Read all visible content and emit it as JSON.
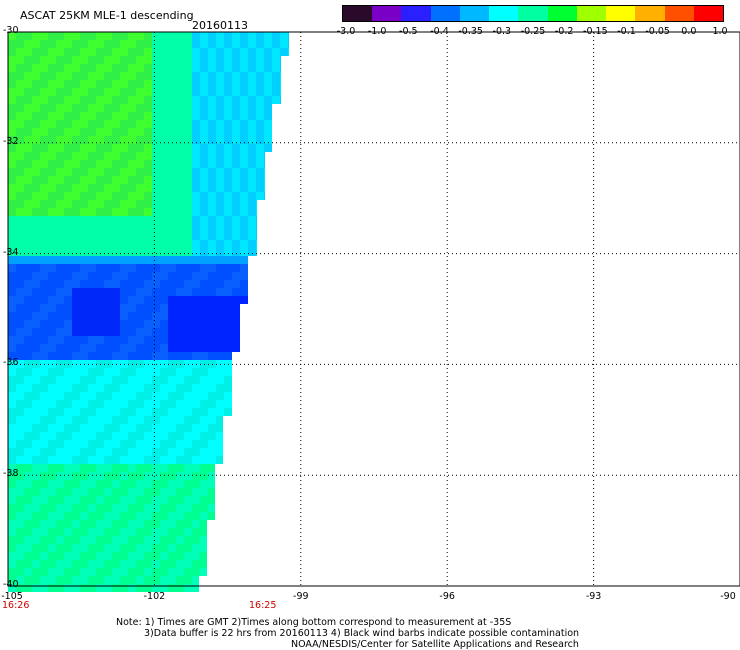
{
  "title": "ASCAT 25KM MLE-1 descending",
  "date": "20160113",
  "colorbar": {
    "labels": [
      "-3.0",
      "-1.0",
      "-0.5",
      "-0.4",
      "-0.35",
      "-0.3",
      "-0.25",
      "-0.2",
      "-0.15",
      "-0.1",
      "-0.05",
      "0.0",
      "1.0"
    ],
    "colors": [
      "#2a0a2a",
      "#7a00c8",
      "#2a20ff",
      "#0070ff",
      "#00b8ff",
      "#00ffff",
      "#00ffa0",
      "#00ff30",
      "#a0ff00",
      "#ffff00",
      "#ffb000",
      "#ff5000",
      "#ff0000"
    ]
  },
  "map": {
    "y_labels": [
      "-30",
      "-32",
      "-34",
      "-36",
      "-38",
      "-40"
    ],
    "x_labels": [
      "-105",
      "-102",
      "-99",
      "-96",
      "-93",
      "-90"
    ],
    "times": [
      "16:26",
      "16:25"
    ],
    "lat_range": [
      -40,
      -30
    ],
    "lon_range": [
      -105,
      -90
    ]
  },
  "notes": [
    "Note: 1) Times are GMT 2)Times along bottom correspond to measurement at -35S",
    "3)Data buffer is 22 hrs from 20160113 4) Black wind barbs indicate possible contamination",
    "NOAA/NESDIS/Center for Satellite Applications and Research"
  ]
}
